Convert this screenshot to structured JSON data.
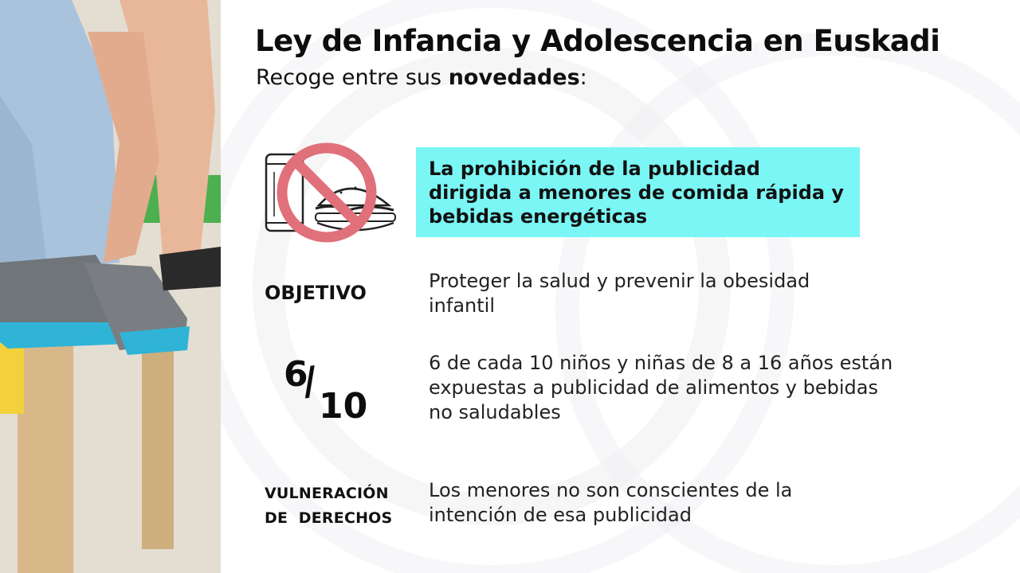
{
  "header": {
    "title": "Ley de Infancia y Adolescencia en Euskadi",
    "subtitle_prefix": "Recoge entre sus ",
    "subtitle_bold": "novedades",
    "subtitle_suffix": ":"
  },
  "highlight": {
    "text": "La prohibición de la publicidad dirigida a menores de comida rápida y bebidas energéticas",
    "color": "#7af6f5"
  },
  "icon": {
    "name": "no-fast-food-icon",
    "ban_color": "#e0707a"
  },
  "rows": [
    {
      "label": "OBJETIVO",
      "text": "Proteger la salud y prevenir la obesidad infantil"
    },
    {
      "label_numerator": "6",
      "label_slash": "/",
      "label_denominator": "10",
      "text": "6 de cada 10 niños y niñas de 8 a 16 años están expuestas a publicidad de alimentos y bebidas no saludables"
    },
    {
      "label_line1": "VULNERACIÓN",
      "label_line2": "DE  DERECHOS",
      "text": "Los menores no son conscientes de la intención de esa publicidad"
    }
  ]
}
